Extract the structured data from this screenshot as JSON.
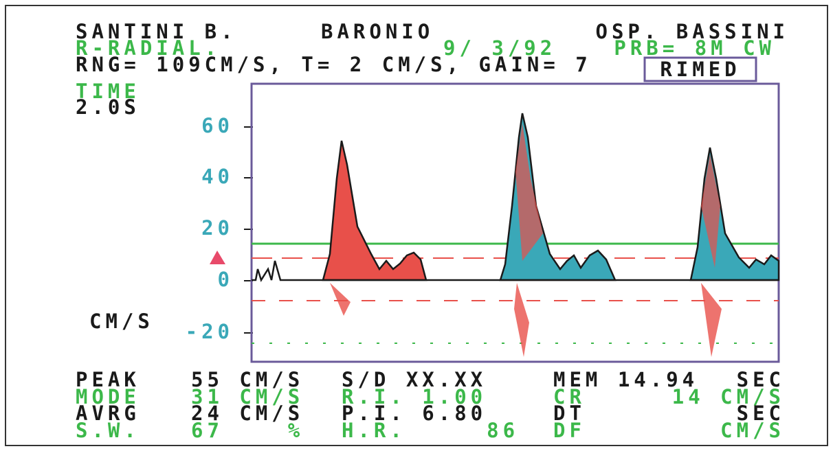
{
  "header": {
    "patient": "SANTINI B.",
    "operator": "BARONIO",
    "hospital": "OSP. BASSINI",
    "vessel": "R-RADIAL.",
    "date": "9/ 3/92",
    "probe": "PRB= 8M CW",
    "settings": "RNG= 109CM/S, T= 2 CM/S, GAIN= 7",
    "brand": "RIMED"
  },
  "time": {
    "label": "TIME",
    "value": "2.0S"
  },
  "scale": {
    "unit": "CM/S",
    "ticks": [
      "60",
      "40",
      "20",
      "0",
      "-20"
    ]
  },
  "table": {
    "rows": [
      [
        "PEAK",
        "55 CM/S",
        "S/D XX.XX",
        "MEM 14.94",
        "SEC"
      ],
      [
        "MODE",
        "31 CM/S",
        "R.I. 1.00",
        "CR",
        "14 CM/S"
      ],
      [
        "AVRG",
        "24 CM/S",
        "P.I. 6.80",
        "DT",
        "SEC"
      ],
      [
        "S.W.",
        "67    %",
        "H.R.     86",
        "DF",
        "CM/S"
      ]
    ]
  }
}
